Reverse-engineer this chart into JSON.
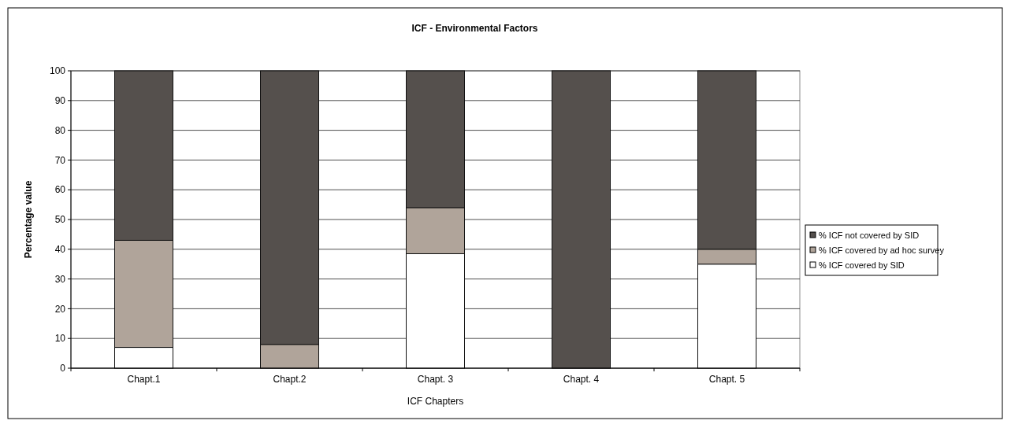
{
  "chart_data": {
    "type": "bar",
    "title": "ICF - Environmental Factors",
    "xlabel": "ICF Chapters",
    "ylabel": "Percentage value",
    "categories": [
      "Chapt.1",
      "Chapt.2",
      "Chapt. 3",
      "Chapt. 4",
      "Chapt. 5"
    ],
    "stacked": true,
    "series": [
      {
        "name": "% ICF covered by SID",
        "color": "#ffffff",
        "values": [
          7,
          0,
          38.5,
          0,
          35
        ]
      },
      {
        "name": "% ICF covered by ad hoc survey",
        "color": "#b0a49a",
        "values": [
          36,
          8,
          15.5,
          0,
          5
        ]
      },
      {
        "name": "% ICF not covered by SID",
        "color": "#55504d",
        "values": [
          57,
          92,
          46,
          100,
          60
        ]
      }
    ],
    "ylim": [
      0,
      100
    ],
    "yticks": [
      0,
      10,
      20,
      30,
      40,
      50,
      60,
      70,
      80,
      90,
      100
    ],
    "grid": "y",
    "legend": "right"
  }
}
